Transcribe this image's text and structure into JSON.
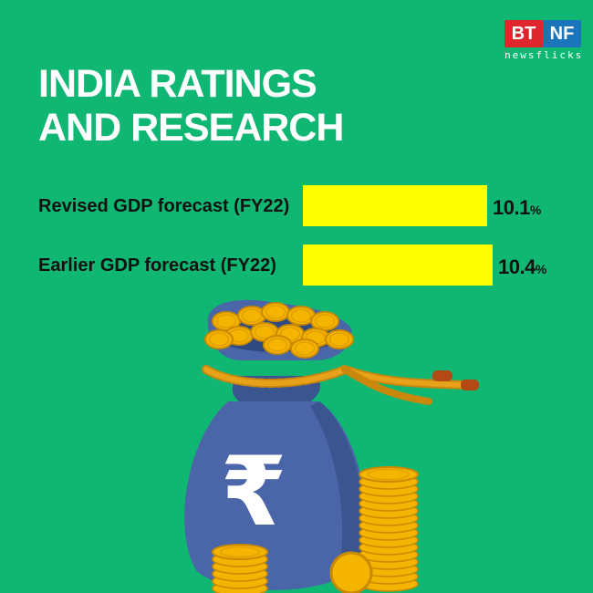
{
  "brand": {
    "logo_left": "BT",
    "logo_right": "NF",
    "sub": "newsflicks",
    "colors": {
      "left": "#e0262d",
      "right": "#1b75bb"
    }
  },
  "title": {
    "line1": "INDIA RATINGS",
    "line2": "AND RESEARCH"
  },
  "colors": {
    "background": "#0fb772",
    "bar": "#ffff00",
    "bag": "#4a66a8",
    "coin": "#f4b400"
  },
  "illustration": {
    "bag_icon": "money-bag-icon",
    "symbol": "₹"
  },
  "chart_data": {
    "type": "bar",
    "orientation": "horizontal",
    "categories": [
      "Revised GDP forecast (FY22)",
      "Earlier GDP forecast (FY22)"
    ],
    "values": [
      10.1,
      10.4
    ],
    "value_labels": [
      "10.1",
      "10.4"
    ],
    "unit": "%",
    "grid": false
  }
}
